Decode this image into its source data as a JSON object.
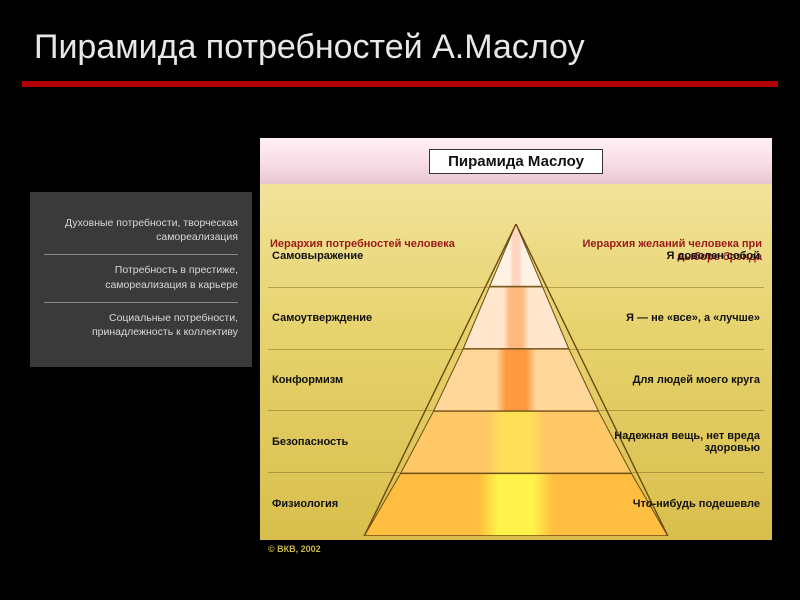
{
  "slide": {
    "title": "Пирамида потребностей А.Маслоу",
    "background": "#000000",
    "accent_color": "#b30000",
    "title_color": "#e8e8e8",
    "title_fontsize": 34
  },
  "sidebar": {
    "background": "#3a3a3a",
    "text_color": "#d8d8d8",
    "fontsize": 10.5,
    "items": [
      "Духовные потребности, творческая самореализация",
      "Потребность в престиже, самореализация в карьере",
      "Социальные потребности, принадлежность к коллективу"
    ]
  },
  "infographic": {
    "heading": "Пирамида Маслоу",
    "heading_font_weight": 700,
    "left_subheading": "Иерархия потребностей человека",
    "right_subheading": "Иерархия желаний человека при выборе брэнда",
    "subheading_color": "#9a1b1b",
    "subheading_fontsize": 11,
    "body_bg_gradient": [
      "#f1e39a",
      "#e7d36e",
      "#d8be4c"
    ],
    "head_bg_gradient": [
      "#fff0f4",
      "#f7dbe4",
      "#e7c6d0"
    ],
    "row_divider_color": "rgba(120,90,30,0.45)",
    "row_label_fontsize": 11,
    "footer_text": "© ВКВ, 2002",
    "footer_bg": "#000000",
    "footer_color": "#c9b84a",
    "levels": [
      {
        "left": "Самовыражение",
        "right": "Я доволен собой",
        "fill": "#fff3e6",
        "stripe": "#ffd6c2",
        "half_width": 0.16
      },
      {
        "left": "Самоутверждение",
        "right": "Я — не «все», а «лучше»",
        "fill": "#ffe6cc",
        "stripe": "#ffb980",
        "half_width": 0.32
      },
      {
        "left": "Конформизм",
        "right": "Для людей моего круга",
        "fill": "#ffd699",
        "stripe": "#ff9940",
        "half_width": 0.5
      },
      {
        "left": "Безопасность",
        "right": "Надежная вещь, нет вреда здоровью",
        "fill": "#ffc866",
        "stripe": "#ffe056",
        "half_width": 0.7
      },
      {
        "left": "Физиология",
        "right": "Что-нибудь подешевле",
        "fill": "#ffbe40",
        "stripe": "#fff24a",
        "half_width": 0.92
      }
    ],
    "pyramid_stroke": "#6b4a12",
    "pyramid_stroke_width": 1
  }
}
